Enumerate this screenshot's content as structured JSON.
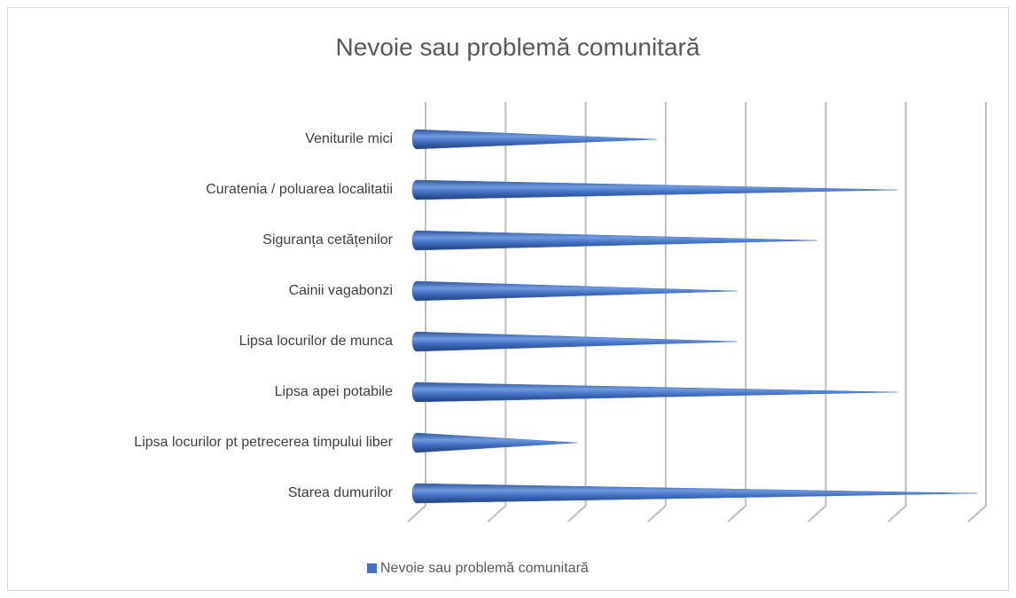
{
  "chart_data": {
    "type": "cone-bar",
    "title": "Nevoie sau problemă comunitară",
    "categories": [
      "Veniturile mici",
      "Curatenia / poluarea localitatii",
      "Siguranța cetățenilor",
      "Cainii vagabonzi",
      "Lipsa locurilor de munca",
      "Lipsa apei potabile",
      "Lipsa locurilor pt petrecerea timpului liber",
      "Starea dumurilor"
    ],
    "series": [
      {
        "name": "Nevoie sau problemă comunitară",
        "color": "#4472c4",
        "values": [
          3,
          6,
          5,
          4,
          4,
          6,
          2,
          7
        ]
      }
    ],
    "xlim": [
      0,
      7
    ],
    "xticks": [
      0,
      1,
      2,
      3,
      4,
      5,
      6,
      7
    ],
    "grid": true,
    "legend": "bottom"
  }
}
